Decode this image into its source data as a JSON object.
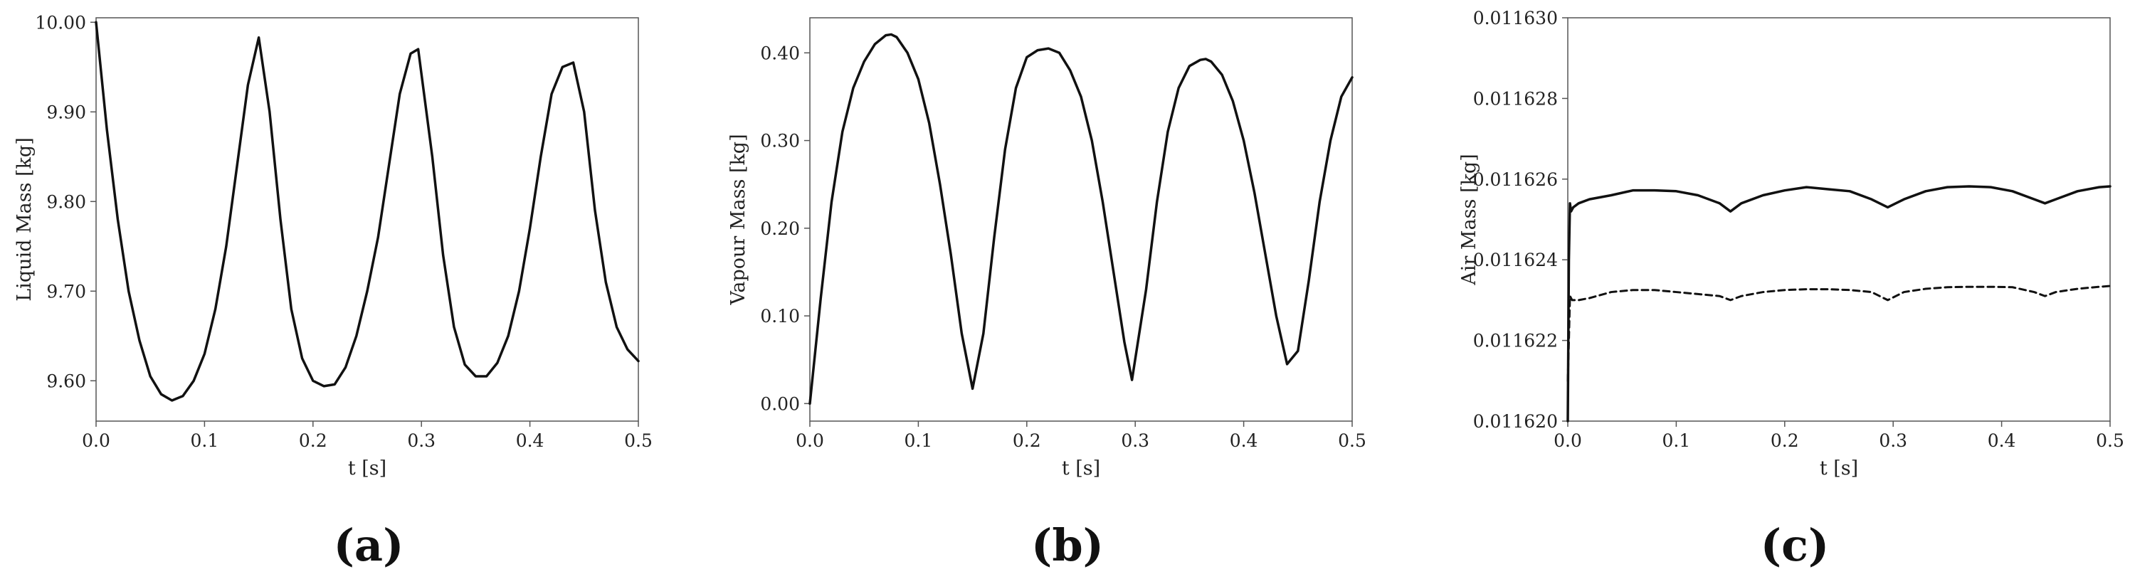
{
  "colors": {
    "line": "#111111",
    "frame": "#555555",
    "text": "#222222"
  },
  "chart_data": [
    {
      "type": "line",
      "panel_label": "(a)",
      "xlabel": "t [s]",
      "ylabel": "Liquid Mass [kg]",
      "xlim": [
        0.0,
        0.5
      ],
      "ylim": [
        9.555,
        10.005
      ],
      "xticks": [
        0.0,
        0.1,
        0.2,
        0.3,
        0.4,
        0.5
      ],
      "xtick_labels": [
        "0.0",
        "0.1",
        "0.2",
        "0.3",
        "0.4",
        "0.5"
      ],
      "yticks": [
        9.6,
        9.7,
        9.8,
        9.9,
        10.0
      ],
      "ytick_labels": [
        "9.60",
        "9.70",
        "9.80",
        "9.90",
        "10.00"
      ],
      "grid": false,
      "series": [
        {
          "style": "solid",
          "x": [
            0.0,
            0.01,
            0.02,
            0.03,
            0.04,
            0.05,
            0.06,
            0.07,
            0.08,
            0.09,
            0.1,
            0.11,
            0.12,
            0.13,
            0.14,
            0.15,
            0.16,
            0.17,
            0.18,
            0.19,
            0.2,
            0.21,
            0.22,
            0.23,
            0.24,
            0.25,
            0.26,
            0.27,
            0.28,
            0.29,
            0.297,
            0.31,
            0.32,
            0.33,
            0.34,
            0.35,
            0.36,
            0.37,
            0.38,
            0.39,
            0.4,
            0.41,
            0.42,
            0.43,
            0.44,
            0.45,
            0.46,
            0.47,
            0.48,
            0.49,
            0.5
          ],
          "y": [
            10.0,
            9.88,
            9.78,
            9.7,
            9.645,
            9.605,
            9.585,
            9.578,
            9.583,
            9.6,
            9.63,
            9.68,
            9.75,
            9.84,
            9.93,
            9.983,
            9.9,
            9.78,
            9.68,
            9.625,
            9.6,
            9.594,
            9.596,
            9.615,
            9.65,
            9.7,
            9.76,
            9.84,
            9.92,
            9.965,
            9.97,
            9.85,
            9.74,
            9.66,
            9.618,
            9.605,
            9.605,
            9.62,
            9.65,
            9.7,
            9.77,
            9.85,
            9.92,
            9.95,
            9.955,
            9.9,
            9.79,
            9.71,
            9.66,
            9.635,
            9.622
          ]
        }
      ]
    },
    {
      "type": "line",
      "panel_label": "(b)",
      "xlabel": "t [s]",
      "ylabel": "Vapour Mass [kg]",
      "xlim": [
        0.0,
        0.5
      ],
      "ylim": [
        -0.02,
        0.44
      ],
      "xticks": [
        0.0,
        0.1,
        0.2,
        0.3,
        0.4,
        0.5
      ],
      "xtick_labels": [
        "0.0",
        "0.1",
        "0.2",
        "0.3",
        "0.4",
        "0.5"
      ],
      "yticks": [
        0.0,
        0.1,
        0.2,
        0.3,
        0.4
      ],
      "ytick_labels": [
        "0.00",
        "0.10",
        "0.20",
        "0.30",
        "0.40"
      ],
      "grid": false,
      "series": [
        {
          "style": "solid",
          "x": [
            0.0,
            0.01,
            0.02,
            0.03,
            0.04,
            0.05,
            0.06,
            0.07,
            0.075,
            0.08,
            0.09,
            0.1,
            0.11,
            0.12,
            0.13,
            0.14,
            0.15,
            0.16,
            0.17,
            0.18,
            0.19,
            0.2,
            0.21,
            0.22,
            0.23,
            0.24,
            0.25,
            0.26,
            0.27,
            0.28,
            0.29,
            0.297,
            0.31,
            0.32,
            0.33,
            0.34,
            0.35,
            0.36,
            0.365,
            0.37,
            0.38,
            0.39,
            0.4,
            0.41,
            0.42,
            0.43,
            0.44,
            0.45,
            0.46,
            0.47,
            0.48,
            0.49,
            0.5
          ],
          "y": [
            0.0,
            0.12,
            0.23,
            0.31,
            0.36,
            0.39,
            0.41,
            0.42,
            0.421,
            0.418,
            0.4,
            0.37,
            0.32,
            0.25,
            0.17,
            0.08,
            0.017,
            0.08,
            0.19,
            0.29,
            0.36,
            0.395,
            0.403,
            0.405,
            0.4,
            0.38,
            0.35,
            0.3,
            0.23,
            0.15,
            0.07,
            0.027,
            0.13,
            0.23,
            0.31,
            0.36,
            0.385,
            0.392,
            0.393,
            0.39,
            0.375,
            0.345,
            0.3,
            0.24,
            0.17,
            0.1,
            0.045,
            0.06,
            0.14,
            0.23,
            0.3,
            0.35,
            0.372
          ]
        }
      ]
    },
    {
      "type": "line",
      "panel_label": "(c)",
      "xlabel": "t [s]",
      "ylabel": "Air Mass [kg]",
      "xlim": [
        0.0,
        0.5
      ],
      "ylim": [
        0.01162,
        0.01163
      ],
      "xticks": [
        0.0,
        0.1,
        0.2,
        0.3,
        0.4,
        0.5
      ],
      "xtick_labels": [
        "0.0",
        "0.1",
        "0.2",
        "0.3",
        "0.4",
        "0.5"
      ],
      "yticks": [
        0.01162,
        0.011622,
        0.011624,
        0.011626,
        0.011628,
        0.01163
      ],
      "ytick_labels": [
        "0.011620",
        "0.011622",
        "0.011624",
        "0.011626",
        "0.011628",
        "0.011630"
      ],
      "grid": false,
      "series": [
        {
          "style": "solid",
          "x": [
            0.0,
            0.001,
            0.002,
            0.003,
            0.005,
            0.01,
            0.02,
            0.04,
            0.06,
            0.08,
            0.1,
            0.12,
            0.14,
            0.15,
            0.16,
            0.18,
            0.2,
            0.22,
            0.24,
            0.26,
            0.28,
            0.295,
            0.31,
            0.33,
            0.35,
            0.37,
            0.39,
            0.41,
            0.43,
            0.44,
            0.45,
            0.47,
            0.49,
            0.5
          ],
          "y": [
            0.01162,
            0.011624,
            0.0116254,
            0.0116252,
            0.0116253,
            0.0116254,
            0.0116255,
            0.0116256,
            0.01162572,
            0.01162572,
            0.0116257,
            0.0116256,
            0.0116254,
            0.0116252,
            0.0116254,
            0.0116256,
            0.01162572,
            0.0116258,
            0.01162575,
            0.0116257,
            0.0116255,
            0.0116253,
            0.0116255,
            0.0116257,
            0.0116258,
            0.01162582,
            0.0116258,
            0.0116257,
            0.0116255,
            0.0116254,
            0.0116255,
            0.0116257,
            0.0116258,
            0.01162582
          ]
        },
        {
          "style": "dashed",
          "x": [
            0.0,
            0.001,
            0.002,
            0.004,
            0.01,
            0.02,
            0.04,
            0.06,
            0.08,
            0.1,
            0.12,
            0.14,
            0.15,
            0.16,
            0.18,
            0.2,
            0.22,
            0.24,
            0.26,
            0.28,
            0.295,
            0.31,
            0.33,
            0.35,
            0.37,
            0.39,
            0.41,
            0.43,
            0.44,
            0.45,
            0.47,
            0.49,
            0.5
          ],
          "y": [
            0.011621,
            0.011622,
            0.0116231,
            0.011623,
            0.011623,
            0.01162305,
            0.0116232,
            0.01162325,
            0.01162325,
            0.0116232,
            0.01162315,
            0.0116231,
            0.011623,
            0.0116231,
            0.0116232,
            0.01162325,
            0.01162327,
            0.01162327,
            0.01162325,
            0.0116232,
            0.011623,
            0.0116232,
            0.01162328,
            0.01162332,
            0.01162333,
            0.01162333,
            0.01162332,
            0.0116232,
            0.0116231,
            0.0116232,
            0.01162328,
            0.01162333,
            0.01162335
          ]
        }
      ]
    }
  ]
}
